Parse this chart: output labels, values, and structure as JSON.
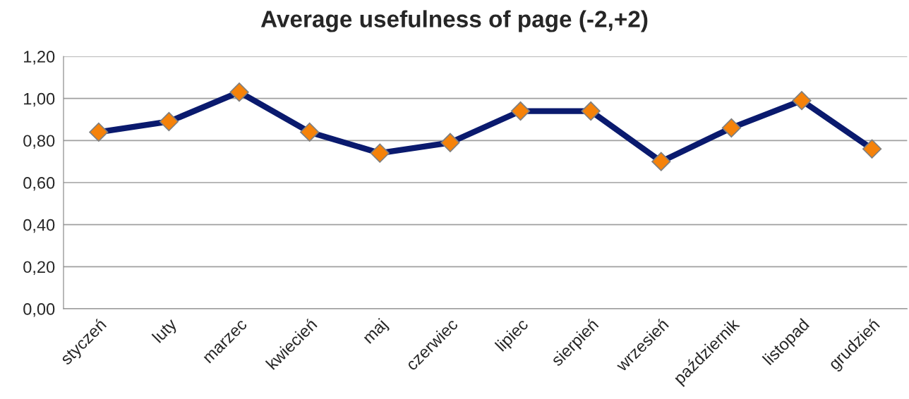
{
  "chart_data": {
    "type": "line",
    "title": "Average usefulness of page (-2,+2)",
    "categories": [
      "styczeń",
      "luty",
      "marzec",
      "kwiecień",
      "maj",
      "czerwiec",
      "lipiec",
      "sierpień",
      "wrzesień",
      "październik",
      "listopad",
      "grudzień"
    ],
    "series": [
      {
        "color": "#0a1a6e",
        "values": [
          0.84,
          0.89,
          1.03,
          0.84,
          0.74,
          0.79,
          0.94,
          0.94,
          0.7,
          0.86,
          0.99,
          0.76
        ]
      }
    ],
    "ylim": [
      0,
      1.2
    ],
    "yticks": [
      {
        "value": 0,
        "label": "0,00"
      },
      {
        "value": 0.2,
        "label": "0,20"
      },
      {
        "value": 0.4,
        "label": "0,40"
      },
      {
        "value": 0.6,
        "label": "0,60"
      },
      {
        "value": 0.8,
        "label": "0,80"
      },
      {
        "value": 1.0,
        "label": "1,00"
      },
      {
        "value": 1.2,
        "label": "1,20"
      }
    ],
    "grid": "y",
    "marker": "diamond",
    "line_style": "solid",
    "legend": false
  }
}
